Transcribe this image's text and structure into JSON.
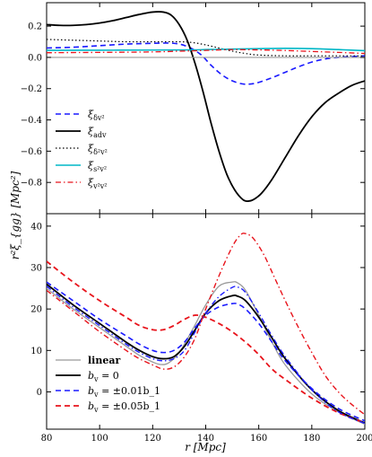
{
  "chart_data": [
    {
      "type": "line",
      "panel": "top",
      "xlim": [
        80,
        200
      ],
      "ylim": [
        -1.0,
        0.35
      ],
      "yticks": [
        0.2,
        0.0,
        -0.2,
        -0.4,
        -0.6,
        -0.8
      ],
      "ytick_labels": [
        "0.2",
        "0.0",
        "−0.2",
        "−0.4",
        "−0.6",
        "−0.8"
      ],
      "xticks": [
        80,
        100,
        120,
        140,
        160,
        180,
        200
      ],
      "legend_position": "lower-left",
      "series": [
        {
          "name": "ξ_{δv²}",
          "color": "#1a1aff",
          "dash": "dashed",
          "width": 1.6,
          "x": [
            80,
            90,
            100,
            110,
            120,
            128,
            133,
            138,
            142,
            146,
            150,
            154,
            157,
            160,
            165,
            170,
            175,
            180,
            185,
            190,
            195,
            200
          ],
          "y": [
            0.06,
            0.065,
            0.075,
            0.085,
            0.09,
            0.09,
            0.07,
            0.02,
            -0.05,
            -0.11,
            -0.15,
            -0.17,
            -0.17,
            -0.16,
            -0.13,
            -0.095,
            -0.06,
            -0.03,
            -0.01,
            0.0,
            0.005,
            0.01
          ]
        },
        {
          "name": "ξ_{adv}",
          "color": "#000000",
          "dash": "solid",
          "width": 1.8,
          "x": [
            80,
            85,
            90,
            95,
            100,
            105,
            110,
            115,
            120,
            124,
            127,
            130,
            133,
            136,
            139,
            142,
            145,
            148,
            151,
            154,
            156,
            158,
            161,
            165,
            170,
            175,
            180,
            185,
            190,
            195,
            200
          ],
          "y": [
            0.21,
            0.205,
            0.205,
            0.21,
            0.22,
            0.235,
            0.255,
            0.275,
            0.29,
            0.29,
            0.27,
            0.21,
            0.11,
            -0.04,
            -0.22,
            -0.42,
            -0.6,
            -0.75,
            -0.85,
            -0.91,
            -0.92,
            -0.91,
            -0.87,
            -0.78,
            -0.64,
            -0.5,
            -0.38,
            -0.29,
            -0.23,
            -0.18,
            -0.15
          ]
        },
        {
          "name": "ξ_{δ²v²}",
          "color": "#000000",
          "dash": "dotted",
          "width": 1.2,
          "x": [
            80,
            90,
            100,
            110,
            120,
            130,
            135,
            140,
            145,
            150,
            155,
            160,
            170,
            180,
            190,
            200
          ],
          "y": [
            0.115,
            0.11,
            0.105,
            0.1,
            0.1,
            0.1,
            0.095,
            0.08,
            0.06,
            0.04,
            0.025,
            0.015,
            0.01,
            0.01,
            0.01,
            0.01
          ]
        },
        {
          "name": "ξ_{s²v²}",
          "color": "#00b7c7",
          "dash": "solid",
          "width": 1.6,
          "x": [
            80,
            100,
            120,
            135,
            140,
            150,
            160,
            170,
            180,
            190,
            200
          ],
          "y": [
            0.045,
            0.046,
            0.047,
            0.048,
            0.05,
            0.053,
            0.056,
            0.058,
            0.056,
            0.05,
            0.043
          ]
        },
        {
          "name": "ξ_{v²v²}",
          "color": "#e8141c",
          "dash": "dashdot",
          "width": 1.3,
          "x": [
            80,
            100,
            120,
            130,
            135,
            140,
            145,
            150,
            160,
            170,
            180,
            190,
            200
          ],
          "y": [
            0.03,
            0.032,
            0.035,
            0.04,
            0.042,
            0.045,
            0.048,
            0.05,
            0.048,
            0.044,
            0.038,
            0.032,
            0.025
          ]
        },
        {
          "name": "",
          "color": "#999999",
          "dash": "solid",
          "width": 1.2,
          "x": [
            80,
            200
          ],
          "y": [
            0.0,
            0.0
          ]
        }
      ]
    },
    {
      "type": "line",
      "panel": "bottom",
      "xlabel": "r [Mpc]",
      "ylabel": "r²ξ_{gg} [Mpc²]",
      "xlim": [
        80,
        200
      ],
      "ylim": [
        -9,
        43
      ],
      "yticks": [
        40,
        30,
        20,
        10,
        0
      ],
      "ytick_labels": [
        "40",
        "30",
        "20",
        "10",
        "0"
      ],
      "xticks": [
        80,
        100,
        120,
        140,
        160,
        180,
        200
      ],
      "xtick_labels": [
        "80",
        "100",
        "120",
        "140",
        "160",
        "180",
        "200"
      ],
      "legend_position": "lower-left",
      "series": [
        {
          "name": "linear",
          "color": "#999999",
          "dash": "solid",
          "width": 1.3,
          "bold": true,
          "x": [
            80,
            90,
            100,
            110,
            115,
            120,
            123,
            126,
            130,
            135,
            140,
            145,
            150,
            152,
            155,
            160,
            165,
            170,
            180,
            190,
            200
          ],
          "y": [
            25,
            20,
            15.5,
            11,
            8.8,
            7.2,
            6.6,
            7.0,
            9.5,
            15,
            21,
            25.5,
            26.5,
            26.3,
            24.5,
            18.5,
            12,
            6.5,
            -0.5,
            -4.8,
            -7.8
          ]
        },
        {
          "name": "b_v = 0",
          "color": "#000000",
          "dash": "solid",
          "width": 1.8,
          "x": [
            80,
            90,
            100,
            110,
            115,
            120,
            124,
            128,
            132,
            136,
            140,
            145,
            150,
            152,
            155,
            160,
            165,
            170,
            180,
            190,
            200
          ],
          "y": [
            26,
            21,
            16.5,
            12,
            10,
            8.5,
            8,
            8.5,
            11,
            15,
            19,
            22,
            23.2,
            23.1,
            22,
            18,
            13,
            8,
            0.5,
            -4.5,
            -7.5
          ]
        },
        {
          "name": "b_v = ±0.01b_1",
          "color": "#1a1aff",
          "dash": "dashed",
          "width": 1.6,
          "x": [
            80,
            90,
            100,
            110,
            115,
            120,
            124,
            128,
            132,
            136,
            140,
            145,
            150,
            152,
            155,
            160,
            165,
            170,
            180,
            190,
            200
          ],
          "y": [
            26.5,
            22,
            17.5,
            13.5,
            11.5,
            10,
            9.5,
            10,
            12,
            15.5,
            18.5,
            20.5,
            21.3,
            21.2,
            20,
            16.5,
            12,
            7.5,
            0.8,
            -4,
            -7
          ]
        },
        {
          "name": "b_v = ±0.05b_1",
          "color": "#e8141c",
          "dash": "dashed",
          "width": 1.8,
          "x": [
            80,
            90,
            100,
            110,
            115,
            120,
            124,
            128,
            132,
            136,
            140,
            145,
            150,
            155,
            160,
            165,
            170,
            180,
            190,
            200
          ],
          "y": [
            31.5,
            26.5,
            22,
            18,
            16,
            15,
            15,
            16,
            17.5,
            18.5,
            18,
            16.5,
            14.5,
            12,
            9,
            5.5,
            3,
            -1.5,
            -5,
            -7.5
          ]
        },
        {
          "name": "",
          "color": "#1a1aff",
          "dash": "dashdot",
          "width": 1.4,
          "x": [
            80,
            90,
            100,
            110,
            115,
            120,
            124,
            128,
            132,
            136,
            140,
            145,
            150,
            152,
            155,
            160,
            165,
            170,
            180,
            190,
            200
          ],
          "y": [
            25.5,
            20.5,
            16,
            11.5,
            9.5,
            8,
            7.5,
            8,
            10,
            14.5,
            19,
            23,
            25.2,
            25.3,
            24,
            19,
            13.5,
            8.5,
            0.5,
            -4.8,
            -7.6
          ]
        },
        {
          "name": "",
          "color": "#e8141c",
          "dash": "dashdot",
          "width": 1.4,
          "x": [
            80,
            90,
            100,
            110,
            115,
            120,
            124,
            128,
            132,
            136,
            140,
            145,
            150,
            153,
            155,
            158,
            162,
            166,
            170,
            175,
            180,
            185,
            190,
            195,
            200
          ],
          "y": [
            24.5,
            19.5,
            14.5,
            10,
            8,
            6.5,
            5.5,
            6,
            8.5,
            13,
            20,
            28,
            35,
            37.8,
            38.2,
            37,
            33,
            27.5,
            22,
            15.5,
            9.5,
            4,
            0,
            -3,
            -5.5
          ]
        }
      ]
    }
  ]
}
